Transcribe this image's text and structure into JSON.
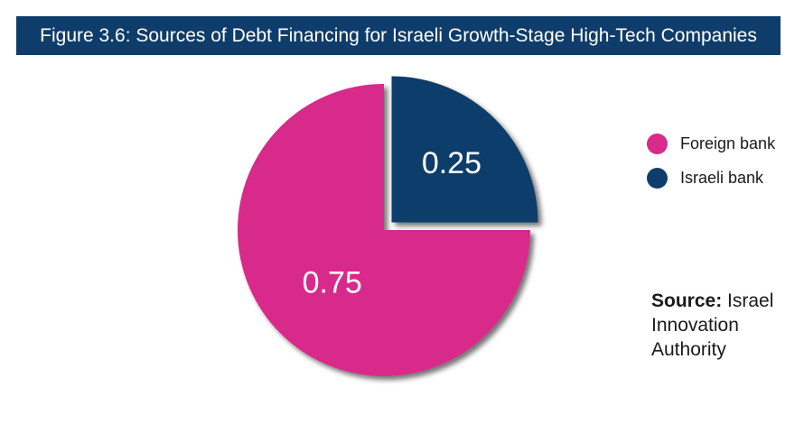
{
  "title": "Figure 3.6: Sources of Debt Financing for Israeli Growth-Stage High-Tech Companies",
  "chart_data": {
    "type": "pie",
    "title": "Figure 3.6: Sources of Debt Financing for Israeli Growth-Stage High-Tech Companies",
    "slices": [
      {
        "name": "Foreign bank",
        "value": 0.75,
        "label": "0.75",
        "color": "#d82a8a",
        "exploded": false
      },
      {
        "name": "Israeli bank",
        "value": 0.25,
        "label": "0.25",
        "color": "#0f3d6b",
        "exploded": true
      }
    ],
    "legend": "right"
  },
  "legend": {
    "items": [
      {
        "label": "Foreign bank",
        "color": "#d82a8a"
      },
      {
        "label": "Israeli bank",
        "color": "#0f3d6b"
      }
    ]
  },
  "source": {
    "label": "Source:",
    "text": "Israel Innovation Authority"
  },
  "colors": {
    "title_bg": "#0f3d6b",
    "foreign_bank": "#d82a8a",
    "israeli_bank": "#0f3d6b"
  }
}
